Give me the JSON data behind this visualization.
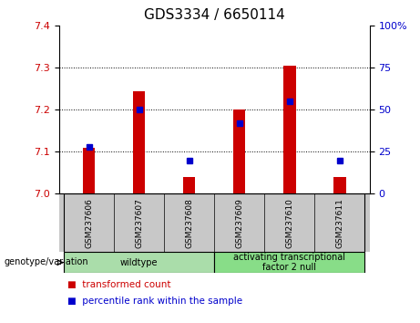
{
  "title": "GDS3334 / 6650114",
  "categories": [
    "GSM237606",
    "GSM237607",
    "GSM237608",
    "GSM237609",
    "GSM237610",
    "GSM237611"
  ],
  "bar_values": [
    7.11,
    7.245,
    7.04,
    7.2,
    7.305,
    7.04
  ],
  "percentile_values": [
    28,
    50,
    20,
    42,
    55,
    20
  ],
  "ymin": 7.0,
  "ymax": 7.4,
  "yticks": [
    7.0,
    7.1,
    7.2,
    7.3,
    7.4
  ],
  "right_yticks": [
    0,
    25,
    50,
    75,
    100
  ],
  "bar_color": "#cc0000",
  "percentile_color": "#0000cc",
  "bar_width": 0.25,
  "groups": [
    {
      "label": "wildtype",
      "color": "#aaddaa"
    },
    {
      "label": "activating transcriptional\nfactor 2 null",
      "color": "#88dd88"
    }
  ],
  "group_label": "genotype/variation",
  "legend_items": [
    {
      "label": "transformed count",
      "color": "#cc0000"
    },
    {
      "label": "percentile rank within the sample",
      "color": "#0000cc"
    }
  ],
  "title_fontsize": 11,
  "tick_fontsize": 8,
  "background_color": "#ffffff",
  "plot_bg_color": "#ffffff",
  "sample_bg_color": "#c8c8c8"
}
